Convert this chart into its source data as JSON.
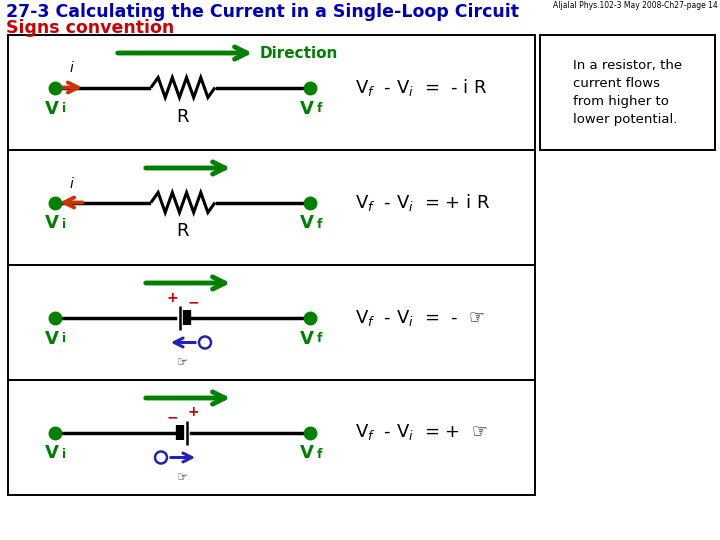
{
  "title1": "27-3 Calculating the Current in a Single-Loop Circuit",
  "title2": "Signs convention",
  "header_note": "Aljalal Phys.102-3 May 2008-Ch27-page 14",
  "bg_color": "#ffffff",
  "green": "#008000",
  "dark_green": "#005000",
  "red_arrow": "#cc3300",
  "blue": "#2222bb",
  "red_label": "#cc0000",
  "black": "#000000",
  "rows": [
    {
      "formula": "V$_f$  - V$_i$  =  - i R",
      "current_dir": "right",
      "type": "resistor"
    },
    {
      "formula": "V$_f$  - V$_i$  = + i R",
      "current_dir": "left",
      "type": "resistor"
    },
    {
      "formula": "V$_f$  - V$_i$  =  -  ☞",
      "current_dir": "none",
      "type": "battery_plus_left"
    },
    {
      "formula": "V$_f$  - V$_i$  = +  ☞",
      "current_dir": "none",
      "type": "battery_minus_left"
    }
  ],
  "note_text": "In a resistor, the\ncurrent flows\nfrom higher to\nlower potential."
}
